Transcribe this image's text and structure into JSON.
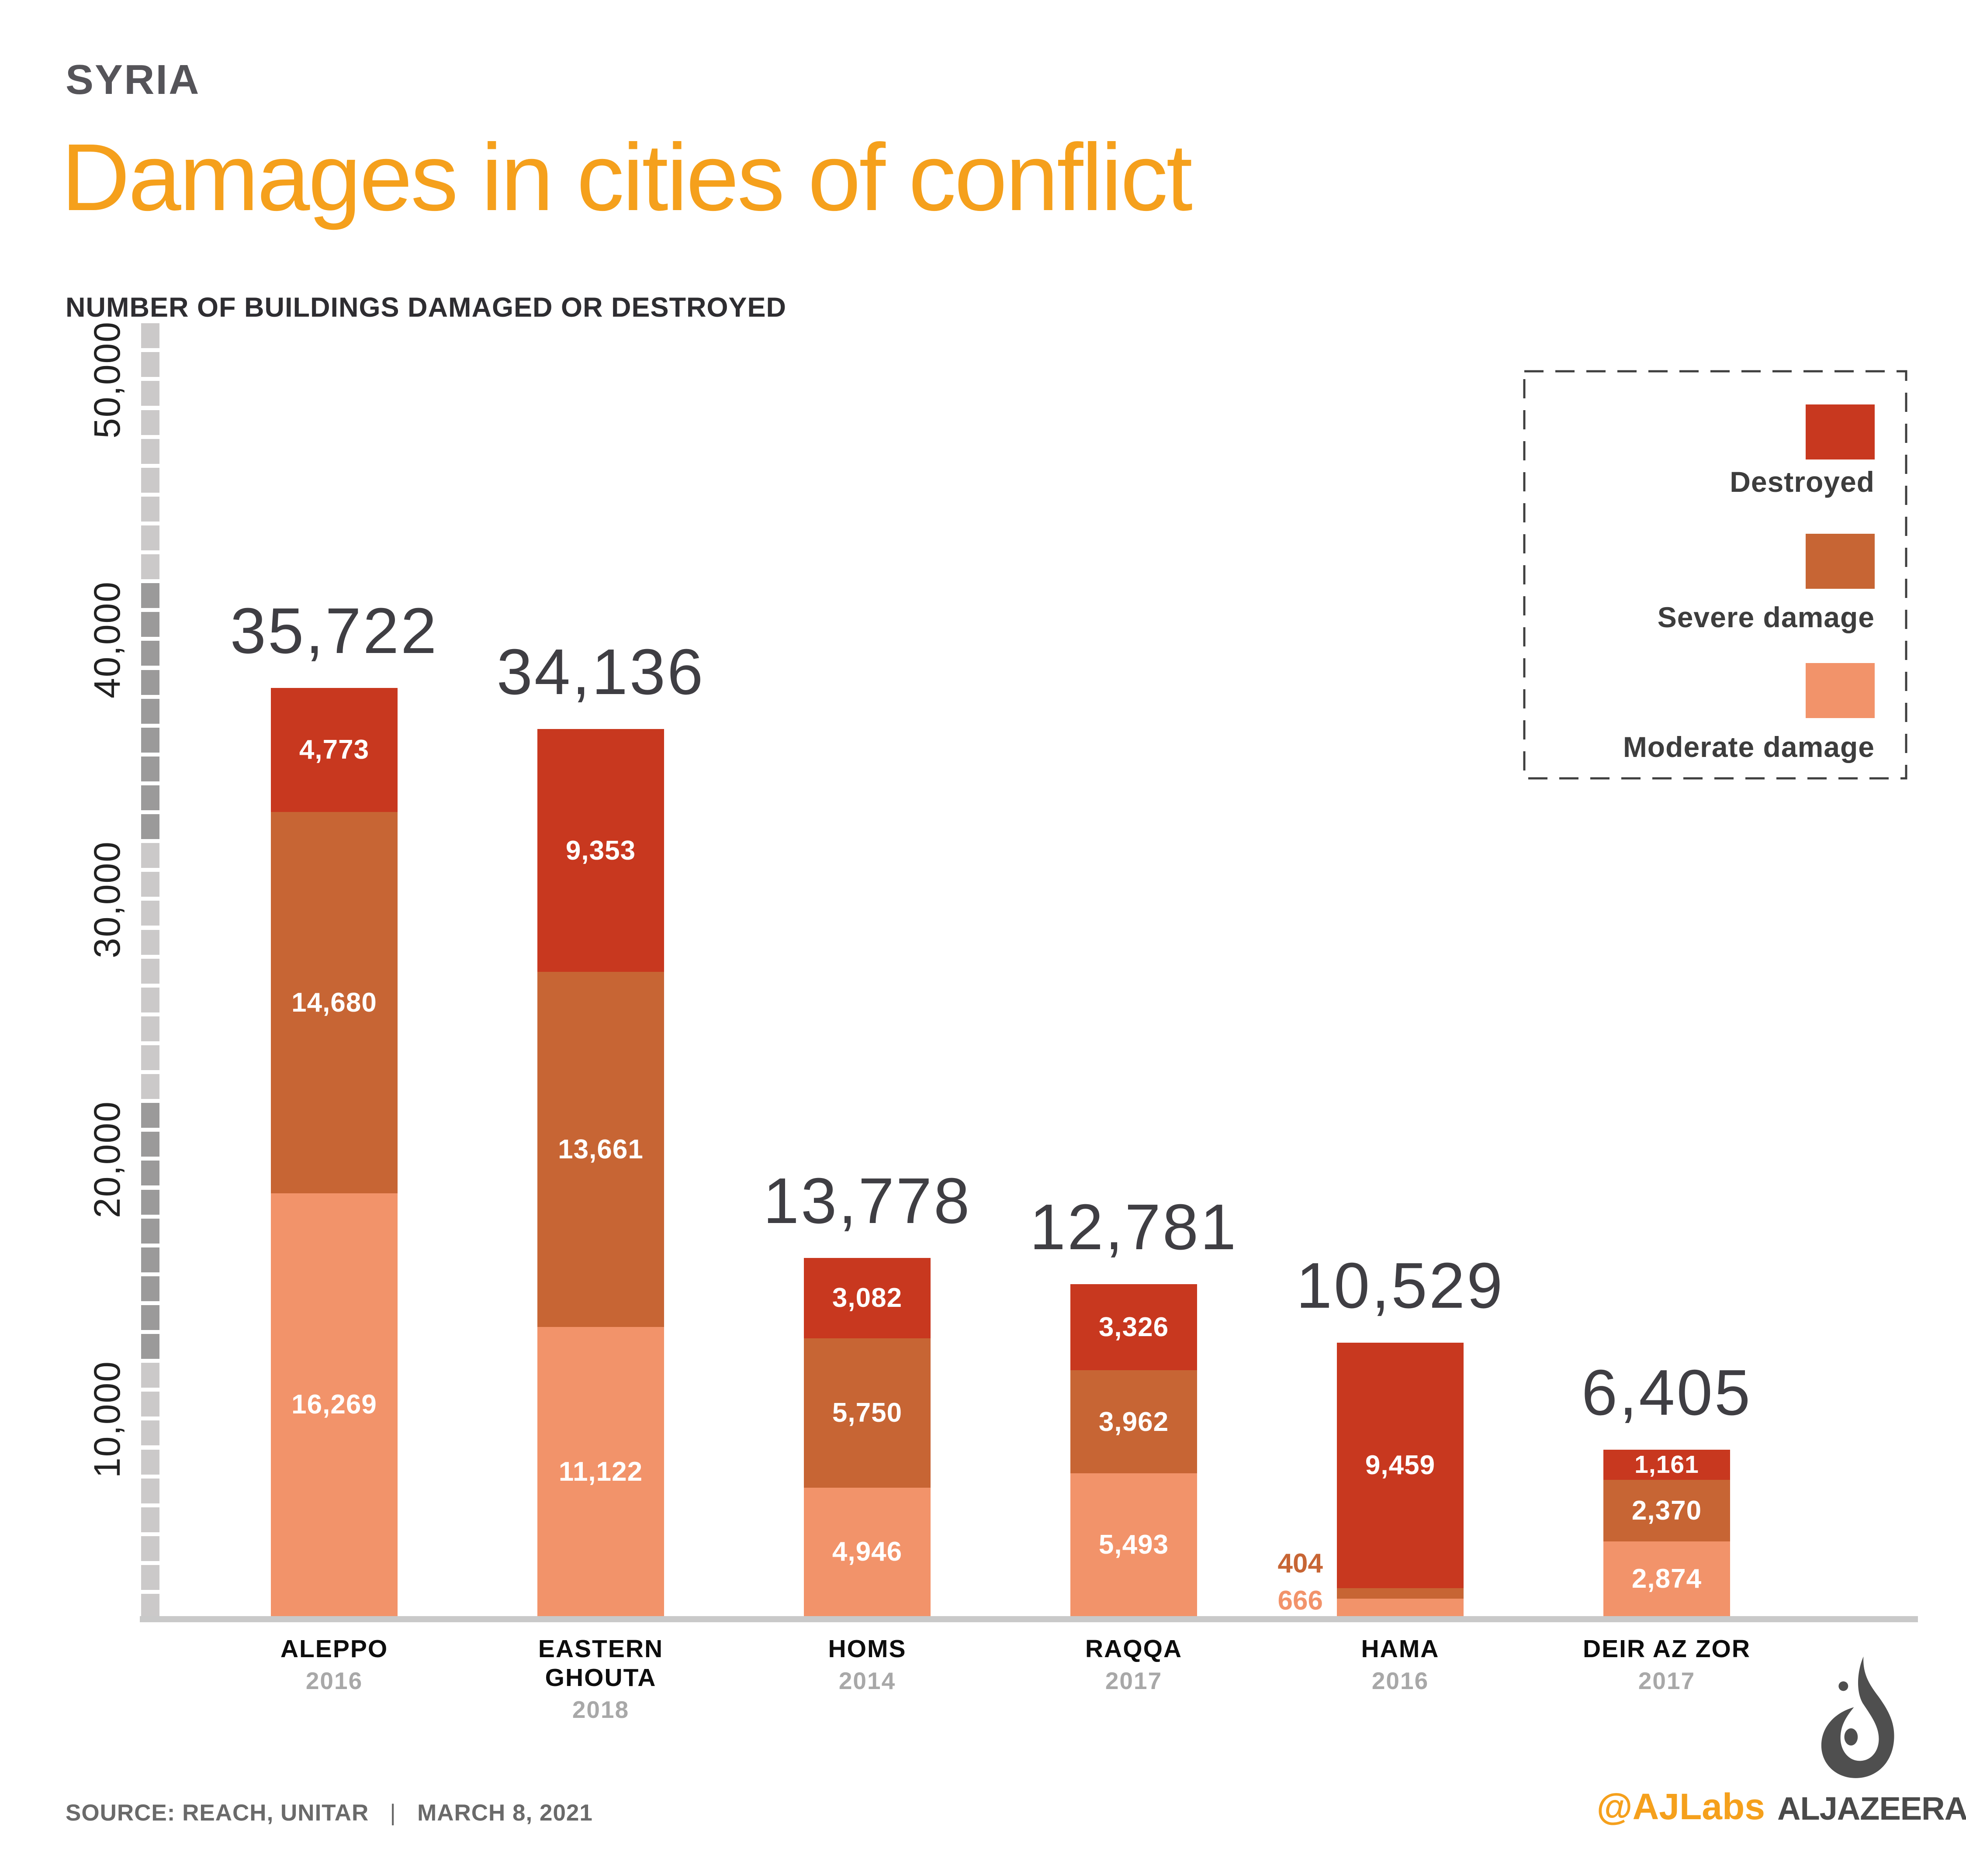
{
  "header": {
    "kicker": "SYRIA",
    "title": "Damages in cities of conflict",
    "subtitle": "NUMBER OF BUILDINGS DAMAGED OR DESTROYED"
  },
  "legend": {
    "items": [
      {
        "label": "Destroyed",
        "color": "#c8381f"
      },
      {
        "label": "Severe damage",
        "color": "#c76534"
      },
      {
        "label": "Moderate damage",
        "color": "#f2936a"
      }
    ]
  },
  "chart_data": {
    "type": "bar",
    "stacked": true,
    "title": "Damages in cities of conflict",
    "xlabel": "",
    "ylabel": "Number of buildings damaged or destroyed",
    "categories": [
      "ALEPPO",
      "EASTERN GHOUTA",
      "HOMS",
      "RAQQA",
      "HAMA",
      "DEIR AZ ZOR"
    ],
    "category_years": [
      "2016",
      "2018",
      "2014",
      "2017",
      "2016",
      "2017"
    ],
    "series": [
      {
        "name": "Destroyed",
        "color": "#c8381f",
        "values": [
          4773,
          9353,
          3082,
          3326,
          9459,
          1161
        ]
      },
      {
        "name": "Severe damage",
        "color": "#c76534",
        "values": [
          14680,
          13661,
          5750,
          3962,
          404,
          2370
        ]
      },
      {
        "name": "Moderate damage",
        "color": "#f2936a",
        "values": [
          16269,
          11122,
          4946,
          5493,
          666,
          2874
        ]
      }
    ],
    "totals": [
      35722,
      34136,
      13778,
      12781,
      10529,
      6405
    ],
    "yticks": [
      "10,000",
      "20,000",
      "30,000",
      "40,000",
      "50,000"
    ],
    "ylim": [
      0,
      52000
    ],
    "grid": false,
    "legend_position": "top-right",
    "accent_colors": {
      "ruler_light": "#cbc9c9",
      "ruler_dark": "#9b9a9a",
      "baseline": "#c9c9c9",
      "total_label": "#3f3e43",
      "year_label": "#a8a8a8"
    }
  },
  "footer": {
    "source_label": "SOURCE: REACH, UNITAR",
    "separator": "|",
    "date": "MARCH 8, 2021",
    "credit": "@AJLabs",
    "brand": "ALJAZEERA"
  }
}
